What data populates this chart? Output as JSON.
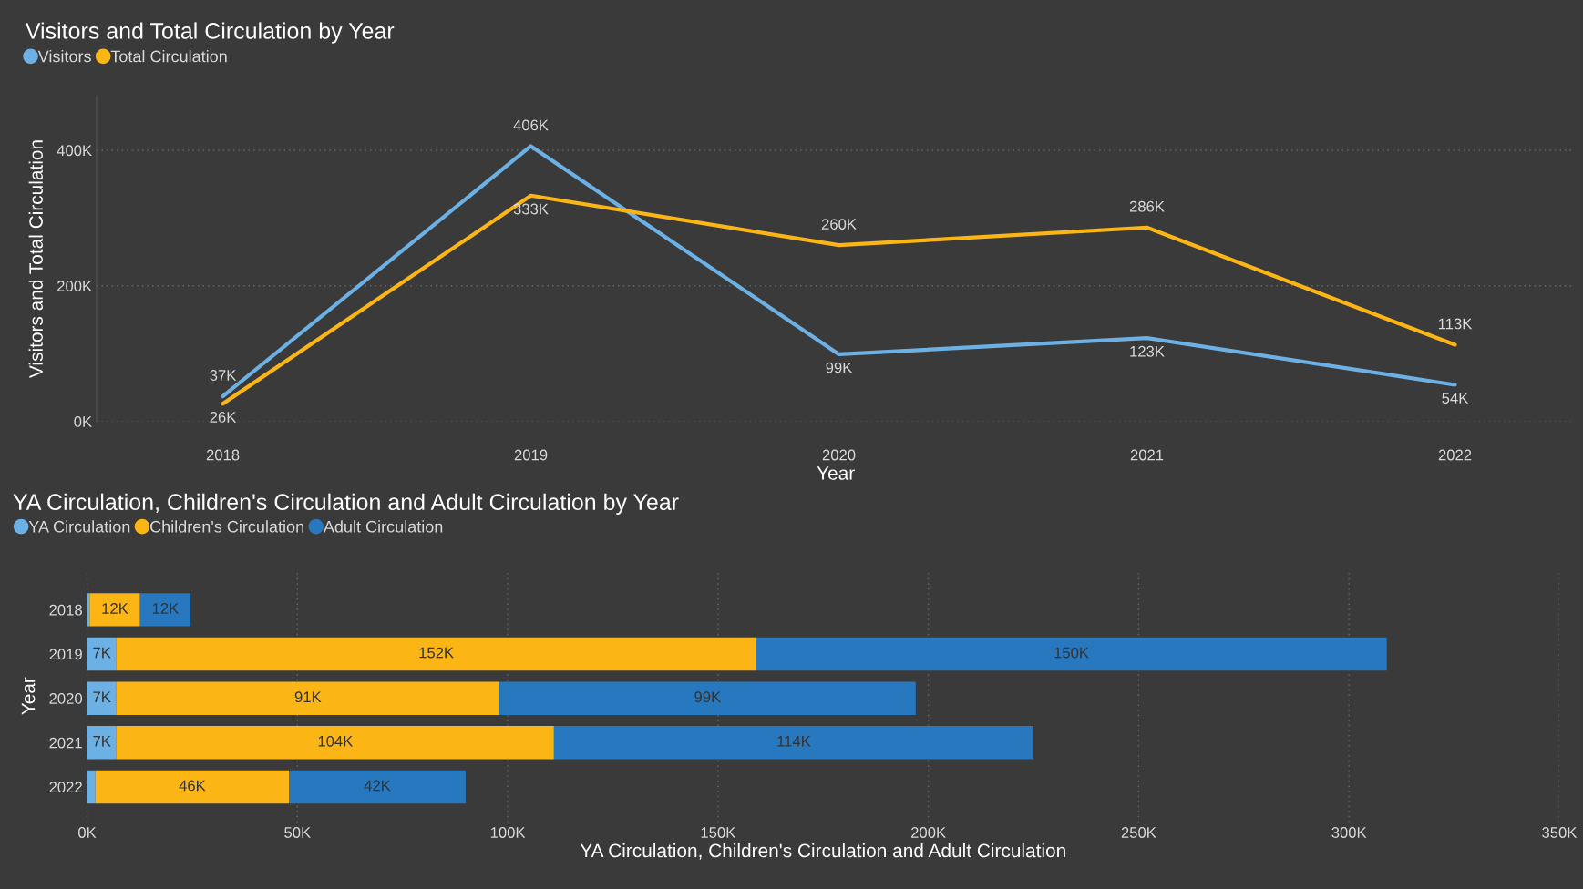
{
  "chart_data": [
    {
      "type": "line",
      "title": "Visitors and Total Circulation by Year",
      "xlabel": "Year",
      "ylabel": "Visitors and Total Circulation",
      "categories": [
        "2018",
        "2019",
        "2020",
        "2021",
        "2022"
      ],
      "series": [
        {
          "name": "Visitors",
          "color": "#6cb0e4",
          "values": [
            37000,
            406000,
            99000,
            123000,
            54000
          ],
          "value_labels": [
            "37K",
            "406K",
            "99K",
            "123K",
            "54K"
          ]
        },
        {
          "name": "Total Circulation",
          "color": "#fbb515",
          "values": [
            26000,
            333000,
            260000,
            286000,
            113000
          ],
          "value_labels": [
            "26K",
            "333K",
            "260K",
            "286K",
            "113K"
          ]
        }
      ],
      "ylim": [
        0,
        480000
      ],
      "yticks": [
        {
          "value": 0,
          "label": "0K"
        },
        {
          "value": 200000,
          "label": "200K"
        },
        {
          "value": 400000,
          "label": "400K"
        }
      ],
      "grid": "y",
      "legend": "top left",
      "marker": "none",
      "line_style": "solid"
    },
    {
      "type": "bar",
      "orientation": "horizontal",
      "stacked": true,
      "title": "YA Circulation, Children's Circulation and Adult Circulation by Year",
      "xlabel": "YA Circulation, Children's Circulation and Adult Circulation",
      "ylabel": "Year",
      "categories": [
        "2018",
        "2019",
        "2020",
        "2021",
        "2022"
      ],
      "series": [
        {
          "name": "YA Circulation",
          "color": "#6cb0e4",
          "values": [
            600,
            7000,
            7000,
            7000,
            2000
          ],
          "value_labels": [
            null,
            "7K",
            "7K",
            "7K",
            null
          ]
        },
        {
          "name": "Children's Circulation",
          "color": "#fbb515",
          "values": [
            12000,
            152000,
            91000,
            104000,
            46000
          ],
          "value_labels": [
            "12K",
            "152K",
            "91K",
            "104K",
            "46K"
          ]
        },
        {
          "name": "Adult Circulation",
          "color": "#2878bf",
          "values": [
            12000,
            150000,
            99000,
            114000,
            42000
          ],
          "value_labels": [
            "12K",
            "150K",
            "99K",
            "114K",
            "42K"
          ]
        }
      ],
      "xlim": [
        0,
        350000
      ],
      "xticks": [
        {
          "value": 0,
          "label": "0K"
        },
        {
          "value": 50000,
          "label": "50K"
        },
        {
          "value": 100000,
          "label": "100K"
        },
        {
          "value": 150000,
          "label": "150K"
        },
        {
          "value": 200000,
          "label": "200K"
        },
        {
          "value": 250000,
          "label": "250K"
        },
        {
          "value": 300000,
          "label": "300K"
        },
        {
          "value": 350000,
          "label": "350K"
        }
      ],
      "grid": "x",
      "legend": "top left"
    }
  ]
}
